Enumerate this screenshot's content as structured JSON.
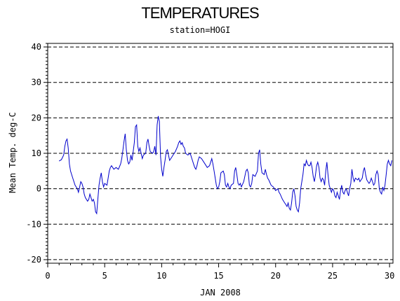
{
  "chart_data": {
    "type": "line",
    "title": "TEMPERATURES",
    "subtitle": "station=HOGI",
    "xlabel": "JAN 2008",
    "ylabel": "Mean Temp. deg-C",
    "xlim": [
      0,
      30.3
    ],
    "ylim": [
      -21,
      41
    ],
    "xticks": [
      0,
      5,
      10,
      15,
      20,
      25,
      30
    ],
    "yticks": [
      -20,
      -10,
      0,
      10,
      20,
      30,
      40
    ],
    "grid": "horizontal dashed at y ticks",
    "series": [
      {
        "color": "#0000cc",
        "points": [
          [
            1.0,
            7.8
          ],
          [
            1.2,
            8.2
          ],
          [
            1.4,
            9.5
          ],
          [
            1.5,
            12
          ],
          [
            1.6,
            13.5
          ],
          [
            1.7,
            14
          ],
          [
            1.8,
            11.5
          ],
          [
            1.9,
            7
          ],
          [
            2.0,
            5
          ],
          [
            2.2,
            3
          ],
          [
            2.4,
            1
          ],
          [
            2.6,
            0
          ],
          [
            2.7,
            -1
          ],
          [
            2.8,
            0.5
          ],
          [
            2.9,
            2
          ],
          [
            3.0,
            1.5
          ],
          [
            3.1,
            0.5
          ],
          [
            3.2,
            -1.5
          ],
          [
            3.3,
            -2.5
          ],
          [
            3.5,
            -3.5
          ],
          [
            3.6,
            -3
          ],
          [
            3.7,
            -1.5
          ],
          [
            3.8,
            -2.5
          ],
          [
            3.9,
            -3.5
          ],
          [
            4.0,
            -3
          ],
          [
            4.1,
            -4
          ],
          [
            4.2,
            -6.5
          ],
          [
            4.3,
            -7
          ],
          [
            4.4,
            -3
          ],
          [
            4.5,
            1
          ],
          [
            4.6,
            3
          ],
          [
            4.7,
            4.5
          ],
          [
            4.8,
            2
          ],
          [
            4.9,
            0.5
          ],
          [
            5.0,
            1.5
          ],
          [
            5.2,
            1
          ],
          [
            5.3,
            3
          ],
          [
            5.4,
            5
          ],
          [
            5.5,
            6
          ],
          [
            5.6,
            6.5
          ],
          [
            5.7,
            6
          ],
          [
            5.8,
            5.5
          ],
          [
            6.0,
            6
          ],
          [
            6.2,
            5.5
          ],
          [
            6.4,
            7
          ],
          [
            6.5,
            8.5
          ],
          [
            6.6,
            11
          ],
          [
            6.7,
            13.5
          ],
          [
            6.8,
            15.5
          ],
          [
            6.9,
            11
          ],
          [
            7.0,
            8
          ],
          [
            7.1,
            7
          ],
          [
            7.2,
            7.5
          ],
          [
            7.3,
            9.5
          ],
          [
            7.4,
            8
          ],
          [
            7.5,
            10.5
          ],
          [
            7.6,
            13
          ],
          [
            7.7,
            17.5
          ],
          [
            7.8,
            18
          ],
          [
            7.9,
            12
          ],
          [
            8.0,
            10.5
          ],
          [
            8.1,
            11.5
          ],
          [
            8.2,
            10
          ],
          [
            8.3,
            8.5
          ],
          [
            8.4,
            9.5
          ],
          [
            8.6,
            10
          ],
          [
            8.7,
            13
          ],
          [
            8.8,
            14
          ],
          [
            8.9,
            12
          ],
          [
            9.0,
            10.5
          ],
          [
            9.2,
            10
          ],
          [
            9.3,
            10.5
          ],
          [
            9.4,
            12
          ],
          [
            9.5,
            9.5
          ],
          [
            9.6,
            18
          ],
          [
            9.7,
            20.5
          ],
          [
            9.8,
            19
          ],
          [
            9.9,
            9
          ],
          [
            10.0,
            5.5
          ],
          [
            10.1,
            3.5
          ],
          [
            10.2,
            6
          ],
          [
            10.3,
            8
          ],
          [
            10.4,
            10.5
          ],
          [
            10.5,
            11
          ],
          [
            10.6,
            9.5
          ],
          [
            10.7,
            8
          ],
          [
            10.8,
            8.5
          ],
          [
            10.9,
            9
          ],
          [
            11.0,
            9.5
          ],
          [
            11.2,
            10.5
          ],
          [
            11.4,
            12
          ],
          [
            11.5,
            13
          ],
          [
            11.6,
            13.5
          ],
          [
            11.7,
            12.5
          ],
          [
            11.8,
            13
          ],
          [
            11.9,
            12
          ],
          [
            12.0,
            11.5
          ],
          [
            12.1,
            10
          ],
          [
            12.3,
            9.5
          ],
          [
            12.5,
            10
          ],
          [
            12.6,
            9
          ],
          [
            12.7,
            8
          ],
          [
            12.8,
            7
          ],
          [
            12.9,
            6
          ],
          [
            13.0,
            5.5
          ],
          [
            13.1,
            6.5
          ],
          [
            13.2,
            8
          ],
          [
            13.3,
            9
          ],
          [
            13.5,
            8.5
          ],
          [
            13.7,
            7.5
          ],
          [
            13.9,
            6.5
          ],
          [
            14.0,
            6
          ],
          [
            14.2,
            6.5
          ],
          [
            14.4,
            8.5
          ],
          [
            14.5,
            7
          ],
          [
            14.6,
            5
          ],
          [
            14.7,
            3
          ],
          [
            14.8,
            1
          ],
          [
            14.9,
            0
          ],
          [
            15.0,
            0.5
          ],
          [
            15.1,
            2
          ],
          [
            15.2,
            4.5
          ],
          [
            15.4,
            5
          ],
          [
            15.5,
            4
          ],
          [
            15.6,
            1
          ],
          [
            15.7,
            0.5
          ],
          [
            15.8,
            1.5
          ],
          [
            15.9,
            0.5
          ],
          [
            16.0,
            0
          ],
          [
            16.1,
            1
          ],
          [
            16.3,
            1.5
          ],
          [
            16.4,
            5
          ],
          [
            16.5,
            6
          ],
          [
            16.6,
            4
          ],
          [
            16.7,
            1.5
          ],
          [
            16.8,
            1
          ],
          [
            16.9,
            1.5
          ],
          [
            17.0,
            0.5
          ],
          [
            17.2,
            2
          ],
          [
            17.4,
            5
          ],
          [
            17.5,
            5.5
          ],
          [
            17.6,
            4.5
          ],
          [
            17.7,
            1
          ],
          [
            17.8,
            0.5
          ],
          [
            17.9,
            1.5
          ],
          [
            18.0,
            4
          ],
          [
            18.2,
            3.5
          ],
          [
            18.4,
            5
          ],
          [
            18.5,
            10
          ],
          [
            18.6,
            11
          ],
          [
            18.7,
            7
          ],
          [
            18.8,
            4.5
          ],
          [
            19.0,
            4
          ],
          [
            19.1,
            5.5
          ],
          [
            19.2,
            4
          ],
          [
            19.3,
            3
          ],
          [
            19.4,
            2.5
          ],
          [
            19.6,
            1
          ],
          [
            19.8,
            0.5
          ],
          [
            20.0,
            -0.5
          ],
          [
            20.2,
            0
          ],
          [
            20.3,
            -1
          ],
          [
            20.4,
            -1.5
          ],
          [
            20.6,
            -3
          ],
          [
            20.8,
            -4
          ],
          [
            20.9,
            -4.5
          ],
          [
            21.0,
            -5
          ],
          [
            21.1,
            -4
          ],
          [
            21.2,
            -5.5
          ],
          [
            21.3,
            -6
          ],
          [
            21.4,
            -4
          ],
          [
            21.5,
            -1
          ],
          [
            21.6,
            0
          ],
          [
            21.7,
            -2
          ],
          [
            21.8,
            -5
          ],
          [
            21.9,
            -6
          ],
          [
            22.0,
            -6.5
          ],
          [
            22.1,
            -4
          ],
          [
            22.2,
            0
          ],
          [
            22.3,
            2
          ],
          [
            22.4,
            4
          ],
          [
            22.5,
            7
          ],
          [
            22.6,
            6.5
          ],
          [
            22.7,
            8
          ],
          [
            22.8,
            7
          ],
          [
            22.9,
            6.5
          ],
          [
            23.0,
            6.5
          ],
          [
            23.1,
            7.5
          ],
          [
            23.2,
            6
          ],
          [
            23.3,
            3.5
          ],
          [
            23.4,
            2
          ],
          [
            23.5,
            4
          ],
          [
            23.6,
            6.5
          ],
          [
            23.7,
            7.5
          ],
          [
            23.8,
            6
          ],
          [
            23.9,
            3
          ],
          [
            24.0,
            2
          ],
          [
            24.1,
            3
          ],
          [
            24.2,
            2.5
          ],
          [
            24.3,
            1
          ],
          [
            24.4,
            5
          ],
          [
            24.5,
            7.5
          ],
          [
            24.6,
            4
          ],
          [
            24.7,
            1
          ],
          [
            24.8,
            0
          ],
          [
            24.9,
            -1
          ],
          [
            25.0,
            0
          ],
          [
            25.1,
            -0.5
          ],
          [
            25.2,
            -2
          ],
          [
            25.3,
            -2.5
          ],
          [
            25.4,
            -1
          ],
          [
            25.5,
            -2
          ],
          [
            25.6,
            -3
          ],
          [
            25.7,
            -0.5
          ],
          [
            25.8,
            1
          ],
          [
            25.9,
            -1
          ],
          [
            26.0,
            -1.5
          ],
          [
            26.1,
            -0.5
          ],
          [
            26.2,
            0
          ],
          [
            26.3,
            -1
          ],
          [
            26.4,
            -2
          ],
          [
            26.5,
            0
          ],
          [
            26.6,
            1.5
          ],
          [
            26.7,
            5.5
          ],
          [
            26.8,
            3
          ],
          [
            26.9,
            2
          ],
          [
            27.0,
            3
          ],
          [
            27.2,
            2.5
          ],
          [
            27.3,
            3
          ],
          [
            27.4,
            2
          ],
          [
            27.5,
            2.5
          ],
          [
            27.6,
            3
          ],
          [
            27.7,
            5
          ],
          [
            27.8,
            6
          ],
          [
            27.9,
            4
          ],
          [
            28.0,
            2.5
          ],
          [
            28.1,
            2
          ],
          [
            28.2,
            1.5
          ],
          [
            28.3,
            2
          ],
          [
            28.4,
            3
          ],
          [
            28.5,
            2
          ],
          [
            28.6,
            1
          ],
          [
            28.7,
            1.5
          ],
          [
            28.8,
            4
          ],
          [
            28.9,
            5
          ],
          [
            29.0,
            4
          ],
          [
            29.1,
            0
          ],
          [
            29.2,
            -1
          ],
          [
            29.3,
            -1.5
          ],
          [
            29.4,
            0.5
          ],
          [
            29.5,
            -0.5
          ],
          [
            29.6,
            1
          ],
          [
            29.7,
            4
          ],
          [
            29.8,
            7
          ],
          [
            29.9,
            8
          ],
          [
            30.0,
            7
          ],
          [
            30.1,
            6.5
          ],
          [
            30.2,
            8
          ]
        ]
      }
    ]
  }
}
